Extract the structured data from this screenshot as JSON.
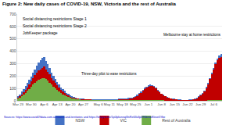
{
  "chart_data": {
    "type": "bar",
    "title": "Figure 2: New daily cases of COVID-19, NSW, Victoria and the rest of Australia",
    "categories": [
      "Mar 23",
      null,
      null,
      null,
      null,
      null,
      null,
      "Mar 30",
      null,
      null,
      null,
      null,
      null,
      null,
      "Apr 6",
      null,
      null,
      null,
      null,
      null,
      null,
      "Apr 13",
      null,
      null,
      null,
      null,
      null,
      null,
      "Apr 20",
      null,
      null,
      null,
      null,
      null,
      null,
      "Apr 27",
      null,
      null,
      null,
      null,
      null,
      null,
      null,
      "May 6",
      null,
      null,
      null,
      null,
      null,
      "May 11",
      null,
      null,
      null,
      null,
      null,
      null,
      "May 18",
      null,
      null,
      null,
      null,
      null,
      null,
      "May 25",
      null,
      null,
      null,
      null,
      null,
      null,
      "Jun 1",
      null,
      null,
      null,
      null,
      null,
      null,
      "Jun 8",
      null,
      null,
      null,
      null,
      null,
      null,
      "Jun 15",
      null,
      null,
      null,
      null,
      null,
      null,
      "Jun 22",
      null,
      null,
      null,
      null,
      null,
      null,
      "Jun 29",
      null,
      null,
      null,
      null,
      null,
      null,
      "Jul 6",
      null,
      null,
      null,
      null
    ],
    "series": [
      {
        "name": "Rest of Australia",
        "color": "#70ad47",
        "values": [
          20,
          28,
          38,
          50,
          65,
          80,
          95,
          115,
          130,
          145,
          160,
          170,
          175,
          180,
          185,
          175,
          162,
          148,
          130,
          115,
          100,
          88,
          75,
          62,
          52,
          44,
          36,
          30,
          24,
          20,
          16,
          13,
          11,
          10,
          9,
          8,
          7,
          7,
          6,
          6,
          6,
          5,
          5,
          5,
          5,
          5,
          5,
          5,
          5,
          5,
          4,
          4,
          4,
          4,
          5,
          5,
          5,
          5,
          5,
          5,
          5,
          5,
          5,
          5,
          5,
          6,
          6,
          6,
          6,
          6,
          6,
          6,
          5,
          5,
          5,
          4,
          4,
          4,
          4,
          3,
          3,
          3,
          3,
          3,
          3,
          3,
          2,
          2,
          2,
          2,
          2,
          2,
          2,
          2,
          2,
          2,
          2,
          3,
          3,
          3,
          3,
          3,
          4,
          4,
          4,
          4,
          4,
          5,
          5,
          5
        ]
      },
      {
        "name": "VIC",
        "color": "#c00000",
        "values": [
          8,
          10,
          14,
          18,
          24,
          30,
          38,
          45,
          52,
          60,
          68,
          75,
          80,
          85,
          90,
          80,
          72,
          65,
          55,
          48,
          42,
          36,
          30,
          25,
          22,
          18,
          15,
          12,
          10,
          8,
          7,
          6,
          6,
          5,
          5,
          5,
          4,
          4,
          4,
          4,
          3,
          3,
          3,
          3,
          3,
          3,
          3,
          4,
          4,
          3,
          3,
          4,
          4,
          5,
          6,
          6,
          7,
          8,
          9,
          10,
          12,
          14,
          18,
          25,
          35,
          48,
          60,
          75,
          90,
          100,
          110,
          115,
          115,
          108,
          95,
          80,
          65,
          50,
          40,
          32,
          25,
          20,
          15,
          12,
          10,
          8,
          7,
          6,
          5,
          4,
          4,
          4,
          5,
          6,
          8,
          12,
          18,
          28,
          40,
          55,
          75,
          100,
          130,
          170,
          210,
          250,
          290,
          320,
          340,
          350
        ]
      },
      {
        "name": "NSW",
        "color": "#4472c4",
        "values": [
          12,
          15,
          22,
          25,
          30,
          35,
          40,
          38,
          42,
          48,
          56,
          65,
          72,
          80,
          76,
          68,
          60,
          52,
          45,
          38,
          35,
          30,
          25,
          22,
          20,
          18,
          15,
          12,
          10,
          8,
          7,
          6,
          5,
          5,
          4,
          3,
          3,
          3,
          3,
          3,
          2,
          2,
          2,
          2,
          3,
          3,
          3,
          4,
          4,
          3,
          3,
          4,
          5,
          5,
          6,
          8,
          8,
          8,
          8,
          9,
          9,
          8,
          8,
          9,
          10,
          10,
          11,
          10,
          9,
          9,
          10,
          10,
          9,
          8,
          7,
          7,
          6,
          5,
          5,
          5,
          4,
          4,
          3,
          3,
          3,
          2,
          2,
          2,
          2,
          2,
          2,
          2,
          3,
          3,
          3,
          4,
          4,
          5,
          5,
          6,
          7,
          8,
          9,
          10,
          12,
          14,
          16,
          18,
          20,
          22
        ]
      }
    ],
    "stacked": true,
    "ylim": [
      0,
      700
    ],
    "yticks": [
      0,
      100,
      200,
      300,
      400,
      500,
      600,
      700
    ],
    "grid": true,
    "legend": "bottom",
    "annotations": [
      "Social distancing restrictions Stage 1",
      "Social distancing restrictions Stage 2",
      "JobKeeper package",
      "Three-day pilot to ease restrictions",
      "Melbourne stay at home restrictions"
    ],
    "source": "Sources: https://www.covid19data.com.au/states-and-territories and https://telegra.me/1p0lpkvnnqI3nRe63x3p090bntwSIeve5Ybe"
  }
}
